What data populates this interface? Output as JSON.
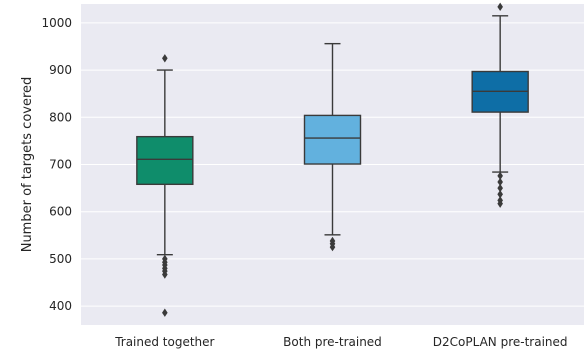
{
  "chart_data": {
    "type": "box",
    "title": "",
    "xlabel": "",
    "ylabel": "Number of targets covered",
    "ylim": [
      360,
      1040
    ],
    "yticks": [
      400,
      500,
      600,
      700,
      800,
      900,
      1000
    ],
    "grid": true,
    "background": "#eaeaf2",
    "categories": [
      "Trained together",
      "Both pre-trained",
      "D2CoPLAN pre-trained"
    ],
    "boxes": [
      {
        "category": "Trained together",
        "color": "#0f8d6b",
        "whisker_low": 509,
        "q1": 658,
        "median": 711,
        "q3": 759,
        "whisker_high": 900,
        "outliers": [
          925,
          500,
          493,
          487,
          480,
          474,
          467,
          386
        ]
      },
      {
        "category": "Both pre-trained",
        "color": "#62b1de",
        "whisker_low": 551,
        "q1": 701,
        "median": 756,
        "q3": 804,
        "whisker_high": 956,
        "outliers": [
          538,
          532,
          525
        ]
      },
      {
        "category": "D2CoPLAN pre-trained",
        "color": "#0e6ea6",
        "whisker_low": 684,
        "q1": 811,
        "median": 855,
        "q3": 897,
        "whisker_high": 1015,
        "outliers": [
          1034,
          676,
          663,
          650,
          637,
          624,
          617
        ]
      }
    ]
  }
}
